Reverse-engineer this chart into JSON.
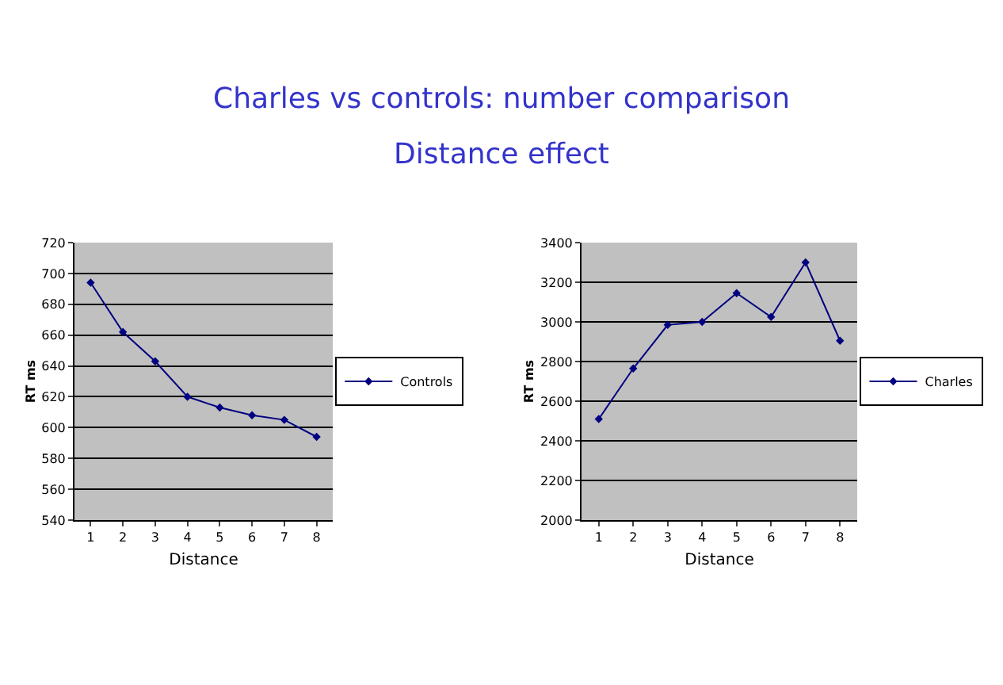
{
  "chart_data": [
    {
      "type": "line",
      "title": "Charles vs controls: number comparison\nDistance effect",
      "xlabel": "Distance",
      "ylabel": "RT ms",
      "categories": [
        "1",
        "2",
        "3",
        "4",
        "5",
        "6",
        "7",
        "8"
      ],
      "series": [
        {
          "name": "Controls",
          "color": "#000080",
          "values": [
            694,
            662,
            643,
            620,
            613,
            608,
            605,
            594
          ]
        }
      ],
      "ylim": [
        540,
        720
      ],
      "yticks": [
        540,
        560,
        580,
        600,
        620,
        640,
        660,
        680,
        700,
        720
      ],
      "grid": "y",
      "legend": "right",
      "marker": "diamond",
      "line_style": "solid"
    },
    {
      "type": "line",
      "xlabel": "Distance",
      "ylabel": "RT ms",
      "categories": [
        "1",
        "2",
        "3",
        "4",
        "5",
        "6",
        "7",
        "8"
      ],
      "series": [
        {
          "name": "Charles",
          "color": "#000080",
          "values": [
            2510,
            2765,
            2985,
            3000,
            3145,
            3025,
            3300,
            2905
          ]
        }
      ],
      "ylim": [
        2000,
        3400
      ],
      "yticks": [
        2000,
        2200,
        2400,
        2600,
        2800,
        3000,
        3200,
        3400
      ],
      "grid": "y",
      "legend": "right",
      "marker": "diamond",
      "line_style": "solid"
    }
  ]
}
